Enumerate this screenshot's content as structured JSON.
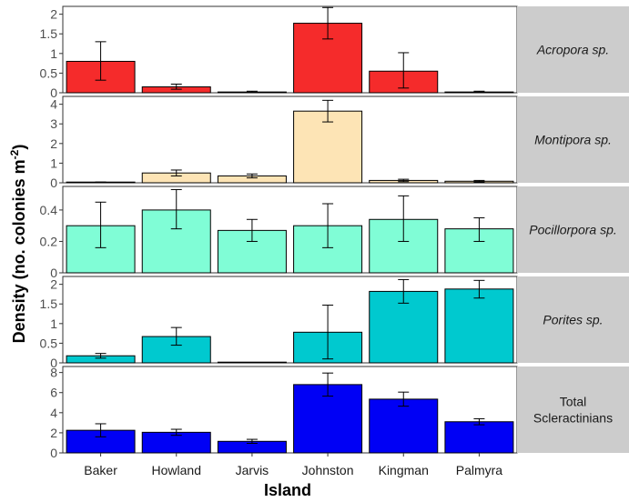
{
  "chart_data": {
    "type": "bar",
    "categories": [
      "Baker",
      "Howland",
      "Jarvis",
      "Johnston",
      "Kingman",
      "Palmyra"
    ],
    "xlabel": "Island",
    "ylabel": "Density  (no. colonies m",
    "ylabel_sup": "-2",
    "ylabel_close": ")",
    "panels": [
      {
        "label_lines": [
          "Acropora sp."
        ],
        "italic": true,
        "color": "#f52b2b",
        "ylim": [
          0,
          2.2
        ],
        "ticks": [
          0,
          0.5,
          1,
          1.5,
          2
        ],
        "tick_labels": [
          "0",
          "0.5",
          "1",
          "1.5",
          "2"
        ],
        "values": [
          0.8,
          0.15,
          0.02,
          1.77,
          0.55,
          0.02
        ],
        "err_low": [
          0.32,
          0.09,
          0.01,
          1.37,
          0.12,
          0.0
        ],
        "err_high": [
          1.3,
          0.22,
          0.04,
          2.17,
          1.02,
          0.04
        ]
      },
      {
        "label_lines": [
          "Montipora sp."
        ],
        "italic": true,
        "color": "#fde4b5",
        "ylim": [
          0,
          4.4
        ],
        "ticks": [
          0,
          1,
          2,
          3,
          4
        ],
        "tick_labels": [
          "0",
          "1",
          "2",
          "3",
          "4"
        ],
        "values": [
          0.02,
          0.5,
          0.35,
          3.65,
          0.12,
          0.08
        ],
        "err_low": [
          0.0,
          0.35,
          0.25,
          3.1,
          0.06,
          0.04
        ],
        "err_high": [
          0.04,
          0.65,
          0.45,
          4.2,
          0.18,
          0.12
        ]
      },
      {
        "label_lines": [
          "Pocillorpora sp."
        ],
        "italic": true,
        "color": "#80fdd6",
        "ylim": [
          0,
          0.55
        ],
        "ticks": [
          0,
          0.2,
          0.4
        ],
        "tick_labels": [
          "0",
          "0.2",
          "0.4"
        ],
        "values": [
          0.3,
          0.4,
          0.27,
          0.3,
          0.34,
          0.28
        ],
        "err_low": [
          0.16,
          0.28,
          0.2,
          0.16,
          0.2,
          0.2
        ],
        "err_high": [
          0.45,
          0.53,
          0.34,
          0.44,
          0.49,
          0.35
        ]
      },
      {
        "label_lines": [
          "Porites sp."
        ],
        "italic": true,
        "color": "#00c9cf",
        "ylim": [
          0,
          2.2
        ],
        "ticks": [
          0,
          0.5,
          1,
          1.5,
          2
        ],
        "tick_labels": [
          "0",
          "0.5",
          "1",
          "1.5",
          "2"
        ],
        "values": [
          0.18,
          0.67,
          0.0,
          0.78,
          1.82,
          1.88
        ],
        "err_low": [
          0.12,
          0.45,
          0.0,
          0.1,
          1.52,
          1.65
        ],
        "err_high": [
          0.24,
          0.9,
          0.0,
          1.47,
          2.12,
          2.1
        ]
      },
      {
        "label_lines": [
          "Total",
          "Scleractinians"
        ],
        "italic": false,
        "color": "#0000f5",
        "ylim": [
          0,
          8.6
        ],
        "ticks": [
          0,
          2,
          4,
          6,
          8
        ],
        "tick_labels": [
          "0",
          "2",
          "4",
          "6",
          "8"
        ],
        "values": [
          2.25,
          2.05,
          1.15,
          6.8,
          5.35,
          3.1
        ],
        "err_low": [
          1.6,
          1.75,
          0.95,
          5.65,
          4.65,
          2.8
        ],
        "err_high": [
          2.9,
          2.35,
          1.35,
          7.95,
          6.05,
          3.4
        ]
      }
    ]
  }
}
